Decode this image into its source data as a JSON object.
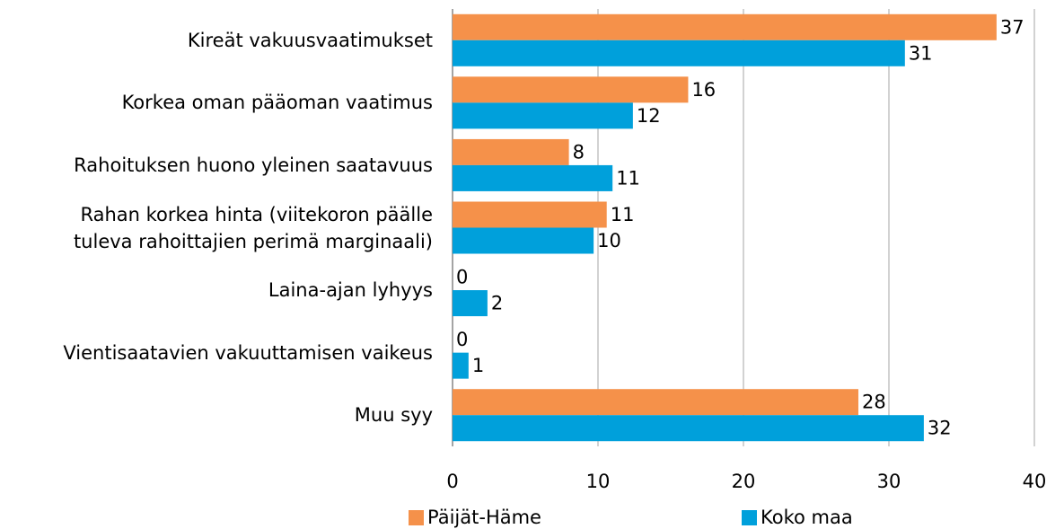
{
  "chart_data": {
    "type": "bar",
    "orientation": "horizontal",
    "categories": [
      "Kireät vakuusvaatimukset",
      "Korkea oman pääoman vaatimus",
      "Rahoituksen huono yleinen saatavuus",
      "Rahan korkea hinta (viitekoron päälle\ntuleva rahoittajien perimä marginaali)",
      "Laina-ajan lyhyys",
      "Vientisaatavien vakuuttamisen vaikeus",
      "Muu syy"
    ],
    "series": [
      {
        "name": "Päijät-Häme",
        "color": "#f5914a",
        "values": [
          37.4,
          16.2,
          8.0,
          10.6,
          0,
          0,
          27.9
        ],
        "value_labels": [
          "37",
          "16",
          "8",
          "11",
          "0",
          "0",
          "28"
        ]
      },
      {
        "name": "Koko maa",
        "color": "#00a0db",
        "values": [
          31.1,
          12.4,
          11.0,
          9.7,
          2.4,
          1.1,
          32.4
        ],
        "value_labels": [
          "31",
          "12",
          "11",
          "10",
          "2",
          "1",
          "32"
        ]
      }
    ],
    "xlim": [
      0,
      40
    ],
    "xticks": [
      0,
      10,
      20,
      30,
      40
    ],
    "grid": true,
    "legend": "bottom"
  }
}
